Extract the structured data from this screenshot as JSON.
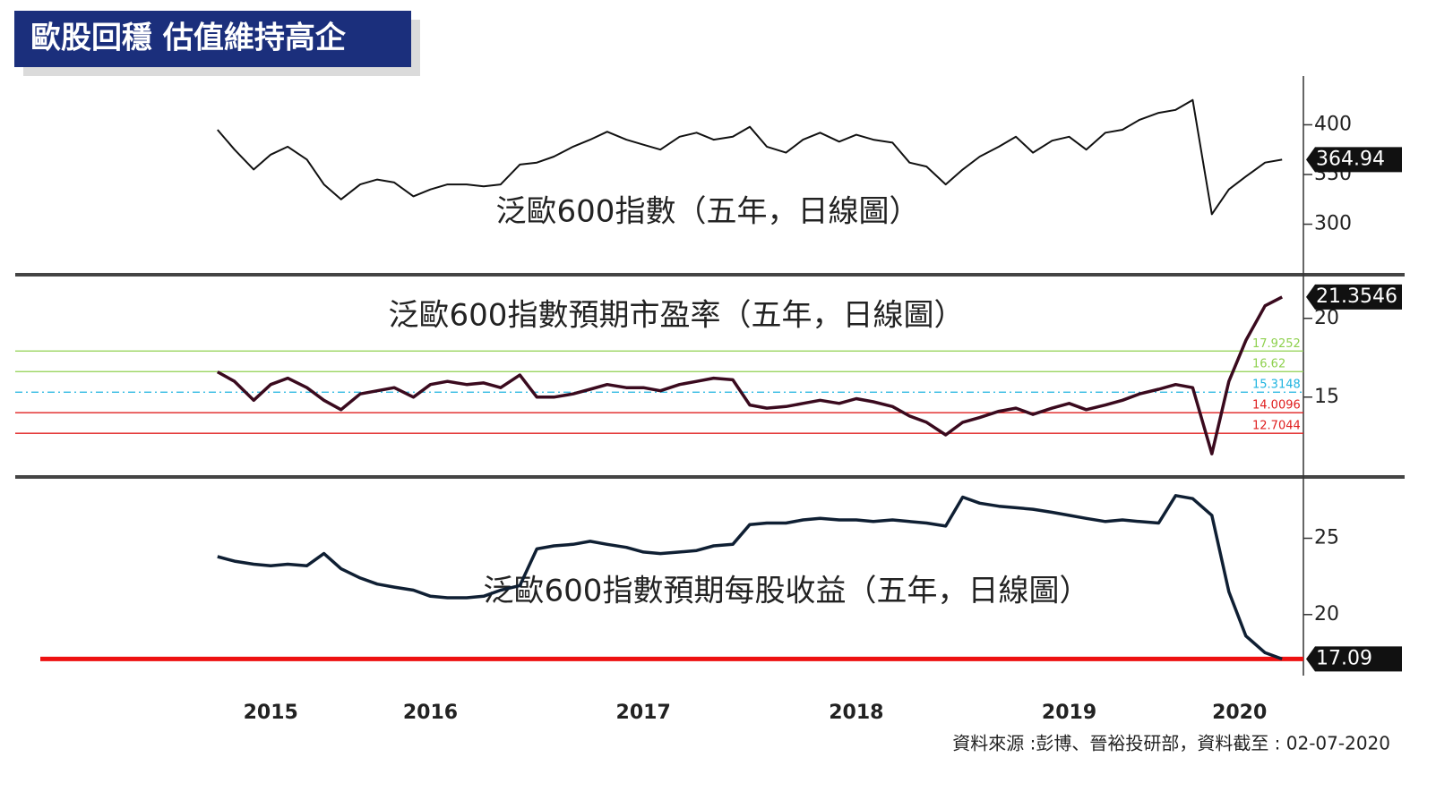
{
  "header": {
    "title": "歐股回穩 估值維持高企"
  },
  "footer": {
    "source": "資料來源 :彭博、晉裕投研部，資料截至 : 02-07-2020"
  },
  "chart_data": [
    {
      "type": "line",
      "title": "泛歐600指數（五年，日線圖）",
      "x": [
        2015.5,
        2015.58,
        2015.67,
        2015.75,
        2015.83,
        2015.92,
        2016.0,
        2016.08,
        2016.17,
        2016.25,
        2016.33,
        2016.42,
        2016.5,
        2016.58,
        2016.67,
        2016.75,
        2016.83,
        2016.92,
        2017.0,
        2017.08,
        2017.17,
        2017.25,
        2017.33,
        2017.42,
        2017.5,
        2017.58,
        2017.67,
        2017.75,
        2017.83,
        2017.92,
        2018.0,
        2018.08,
        2018.17,
        2018.25,
        2018.33,
        2018.42,
        2018.5,
        2018.58,
        2018.67,
        2018.75,
        2018.83,
        2018.92,
        2019.0,
        2019.08,
        2019.17,
        2019.25,
        2019.33,
        2019.42,
        2019.5,
        2019.58,
        2019.67,
        2019.75,
        2019.83,
        2019.92,
        2020.0,
        2020.08,
        2020.17,
        2020.25,
        2020.33,
        2020.42,
        2020.5
      ],
      "series": [
        {
          "color": "#111111",
          "values": [
            395,
            375,
            355,
            370,
            378,
            365,
            340,
            325,
            340,
            345,
            342,
            328,
            335,
            340,
            340,
            338,
            340,
            360,
            362,
            368,
            378,
            385,
            393,
            385,
            380,
            375,
            388,
            392,
            385,
            388,
            398,
            378,
            372,
            385,
            392,
            383,
            390,
            385,
            382,
            362,
            358,
            340,
            355,
            368,
            378,
            388,
            372,
            384,
            388,
            375,
            392,
            395,
            405,
            412,
            415,
            425,
            310,
            335,
            348,
            362,
            364.94
          ]
        }
      ],
      "xlim": [
        2014.55,
        2020.6
      ],
      "ylim": [
        251,
        449
      ],
      "yticks": [
        300,
        350,
        400
      ]
    },
    {
      "type": "line",
      "title": "泛歐600指數預期市盈率（五年，日線圖）",
      "x": [
        2015.5,
        2015.58,
        2015.67,
        2015.75,
        2015.83,
        2015.92,
        2016.0,
        2016.08,
        2016.17,
        2016.25,
        2016.33,
        2016.42,
        2016.5,
        2016.58,
        2016.67,
        2016.75,
        2016.83,
        2016.92,
        2017.0,
        2017.08,
        2017.17,
        2017.25,
        2017.33,
        2017.42,
        2017.5,
        2017.58,
        2017.67,
        2017.75,
        2017.83,
        2017.92,
        2018.0,
        2018.08,
        2018.17,
        2018.25,
        2018.33,
        2018.42,
        2018.5,
        2018.58,
        2018.67,
        2018.75,
        2018.83,
        2018.92,
        2019.0,
        2019.08,
        2019.17,
        2019.25,
        2019.33,
        2019.42,
        2019.5,
        2019.58,
        2019.67,
        2019.75,
        2019.83,
        2019.92,
        2020.0,
        2020.08,
        2020.17,
        2020.25,
        2020.33,
        2020.42,
        2020.5
      ],
      "series": [
        {
          "color": "#3a0a1e",
          "values": [
            16.6,
            16.0,
            14.8,
            15.8,
            16.2,
            15.6,
            14.8,
            14.2,
            15.2,
            15.4,
            15.6,
            15.0,
            15.8,
            16.0,
            15.8,
            15.9,
            15.6,
            16.4,
            15.0,
            15.0,
            15.2,
            15.5,
            15.8,
            15.6,
            15.6,
            15.4,
            15.8,
            16.0,
            16.2,
            16.1,
            14.5,
            14.3,
            14.4,
            14.6,
            14.8,
            14.6,
            14.9,
            14.7,
            14.4,
            13.8,
            13.4,
            12.6,
            13.4,
            13.7,
            14.1,
            14.3,
            13.9,
            14.3,
            14.6,
            14.2,
            14.5,
            14.8,
            15.2,
            15.5,
            15.8,
            15.6,
            11.4,
            16.0,
            18.6,
            20.8,
            21.3546
          ]
        }
      ],
      "reference_lines": [
        {
          "value": 17.9252,
          "color": "#8fd14f",
          "style": "solid"
        },
        {
          "value": 16.62,
          "color": "#8fd14f",
          "style": "solid"
        },
        {
          "value": 15.3148,
          "color": "#1fb4e0",
          "style": "dashed"
        },
        {
          "value": 14.0096,
          "color": "#e02020",
          "style": "solid"
        },
        {
          "value": 12.7044,
          "color": "#e02020",
          "style": "solid"
        }
      ],
      "xlim": [
        2014.55,
        2020.6
      ],
      "ylim": [
        10.1,
        22.6
      ],
      "yticks": [
        15,
        20
      ]
    },
    {
      "type": "line",
      "title": "泛歐600指數預期每股收益（五年，日線圖）",
      "x": [
        2015.5,
        2015.58,
        2015.67,
        2015.75,
        2015.83,
        2015.92,
        2016.0,
        2016.08,
        2016.17,
        2016.25,
        2016.33,
        2016.42,
        2016.5,
        2016.58,
        2016.67,
        2016.75,
        2016.83,
        2016.92,
        2017.0,
        2017.08,
        2017.17,
        2017.25,
        2017.33,
        2017.42,
        2017.5,
        2017.58,
        2017.67,
        2017.75,
        2017.83,
        2017.92,
        2018.0,
        2018.08,
        2018.17,
        2018.25,
        2018.33,
        2018.42,
        2018.5,
        2018.58,
        2018.67,
        2018.75,
        2018.83,
        2018.92,
        2019.0,
        2019.08,
        2019.17,
        2019.25,
        2019.33,
        2019.42,
        2019.5,
        2019.58,
        2019.67,
        2019.75,
        2019.83,
        2019.92,
        2020.0,
        2020.08,
        2020.17,
        2020.25,
        2020.33,
        2020.42,
        2020.5
      ],
      "series": [
        {
          "color": "#0f1f33",
          "values": [
            23.8,
            23.5,
            23.3,
            23.2,
            23.3,
            23.2,
            24.0,
            23.0,
            22.4,
            22.0,
            21.8,
            21.6,
            21.2,
            21.1,
            21.1,
            21.2,
            21.6,
            21.9,
            24.3,
            24.5,
            24.6,
            24.8,
            24.6,
            24.4,
            24.1,
            24.0,
            24.1,
            24.2,
            24.5,
            24.6,
            25.9,
            26.0,
            26.0,
            26.2,
            26.3,
            26.2,
            26.2,
            26.1,
            26.2,
            26.1,
            26.0,
            25.8,
            27.7,
            27.3,
            27.1,
            27.0,
            26.9,
            26.7,
            26.5,
            26.3,
            26.1,
            26.2,
            26.1,
            26.0,
            27.8,
            27.6,
            26.5,
            21.5,
            18.6,
            17.5,
            17.09
          ]
        }
      ],
      "reference_lines": [
        {
          "value": 17.09,
          "color": "#ee1111",
          "style": "solid"
        }
      ],
      "xlim": [
        2014.55,
        2020.6
      ],
      "ylim": [
        16,
        28.9
      ],
      "yticks": [
        20,
        25
      ],
      "xticks": [
        {
          "value": 2015.75,
          "label": "2015"
        },
        {
          "value": 2016.5,
          "label": "2016"
        },
        {
          "value": 2017.5,
          "label": "2017"
        },
        {
          "value": 2018.5,
          "label": "2018"
        },
        {
          "value": 2019.5,
          "label": "2019"
        },
        {
          "value": 2020.3,
          "label": "2020"
        }
      ]
    }
  ]
}
